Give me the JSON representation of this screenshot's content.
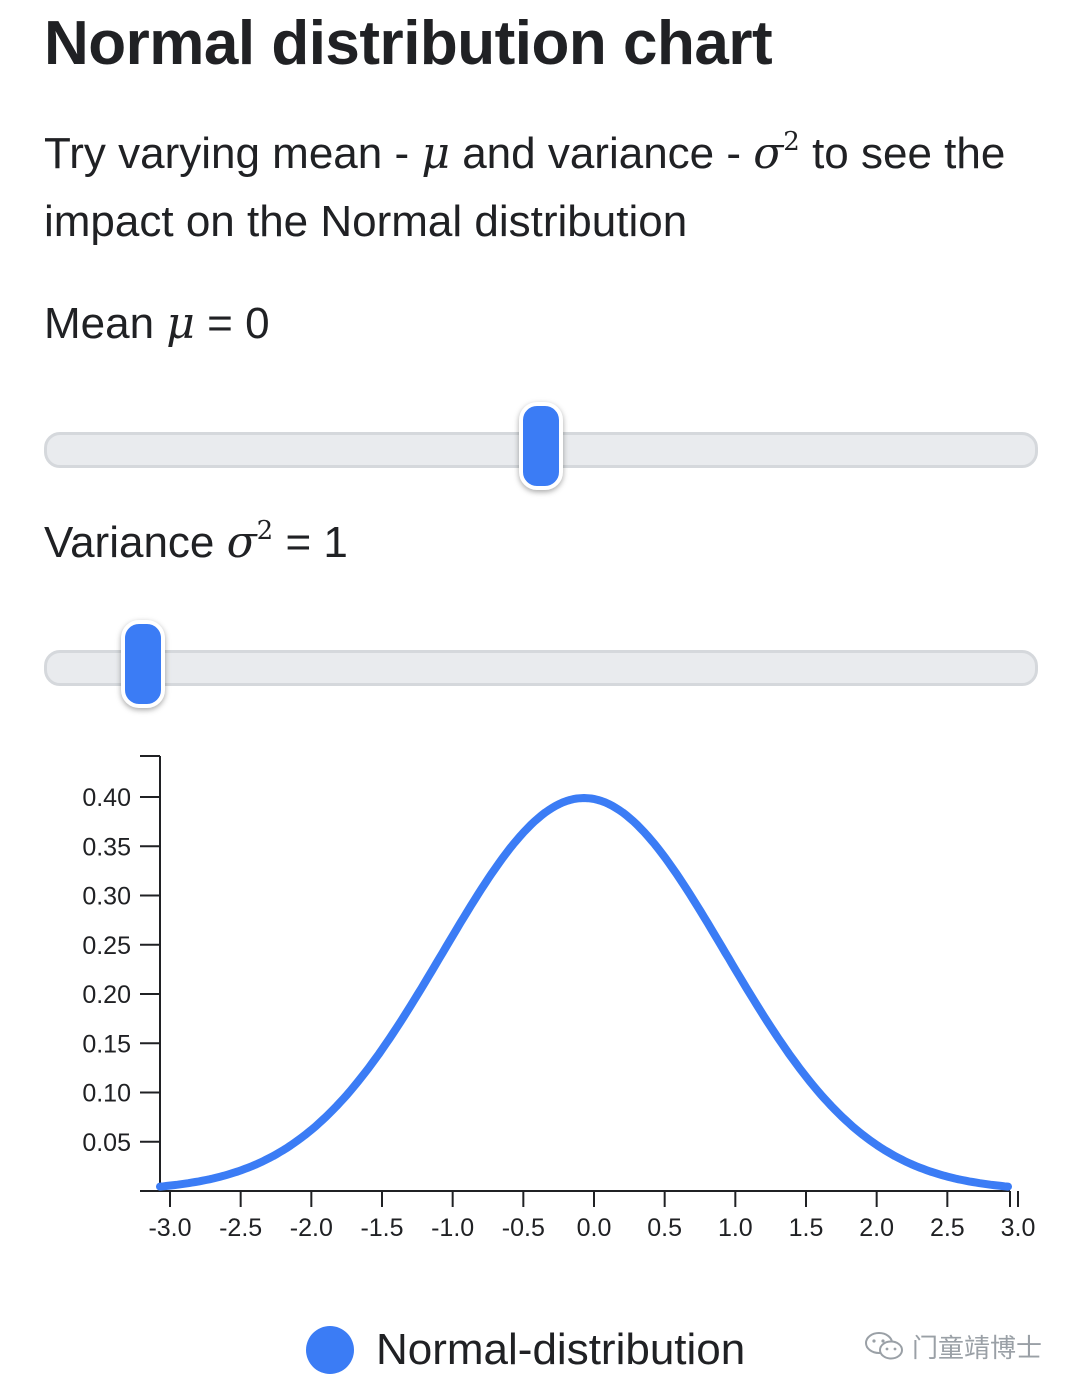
{
  "header": {
    "title": "Normal distribution chart",
    "desc_part1": "Try varying mean - ",
    "mu_symbol": "μ",
    "desc_part2": " and variance - ",
    "sigma_symbol": "σ",
    "sigma_sup": "2",
    "desc_part3": " to see the impact on the Normal distribution"
  },
  "controls": {
    "mean": {
      "label": "Mean ",
      "symbol": "μ",
      "equals": " = ",
      "value": "0",
      "slider_fraction": 0.5
    },
    "variance": {
      "label": "Variance ",
      "symbol": "σ",
      "sup": "2",
      "equals": " = ",
      "value": "1",
      "slider_fraction": 0.1
    }
  },
  "chart_data": {
    "type": "line",
    "title": "",
    "xlabel": "",
    "ylabel": "",
    "mean": 0,
    "variance": 1,
    "x_range": [
      -3.0,
      3.0
    ],
    "ylim": [
      0,
      0.4
    ],
    "x_ticks": [
      "-3.0",
      "-2.5",
      "-2.0",
      "-1.5",
      "-1.0",
      "-0.5",
      "0.0",
      "0.5",
      "1.0",
      "1.5",
      "2.0",
      "2.5",
      "3.0"
    ],
    "y_ticks": [
      "0.05",
      "0.10",
      "0.15",
      "0.20",
      "0.25",
      "0.30",
      "0.35",
      "0.40"
    ],
    "series": [
      {
        "name": "Normal-distribution",
        "color": "#3b7cf5",
        "x": [
          -3.0,
          -2.5,
          -2.0,
          -1.5,
          -1.0,
          -0.5,
          0.0,
          0.5,
          1.0,
          1.5,
          2.0,
          2.5,
          3.0
        ],
        "y": [
          0.0044,
          0.0175,
          0.054,
          0.1295,
          0.242,
          0.3521,
          0.3989,
          0.3521,
          0.242,
          0.1295,
          0.054,
          0.0175,
          0.0044
        ]
      }
    ],
    "grid": false,
    "legend_position": "bottom"
  },
  "legend": {
    "label": "Normal-distribution",
    "color": "#3b7cf5"
  },
  "watermark": {
    "text": "门童靖博士",
    "icon": "wechat-icon"
  }
}
